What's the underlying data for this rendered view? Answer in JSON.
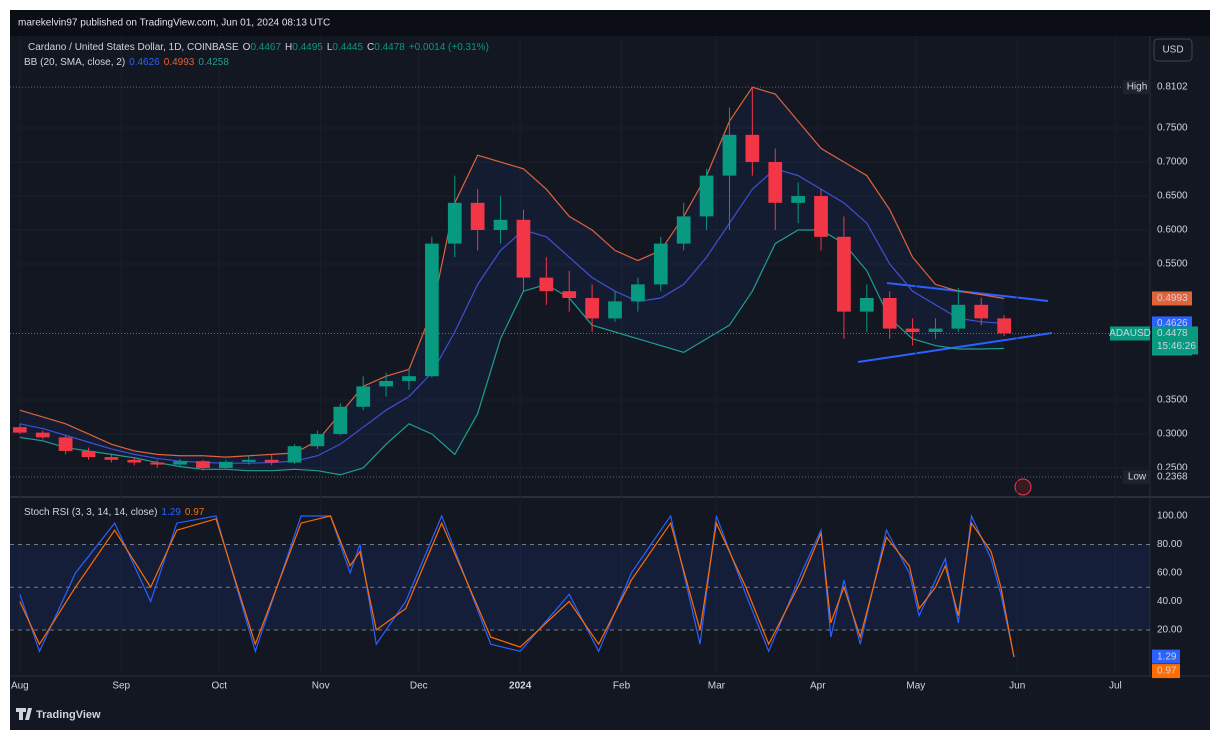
{
  "header": "marekelvin97 published on TradingView.com, Jun 01, 2024 08:13 UTC",
  "footer": "TradingView",
  "currency": "USD",
  "chart_data": [
    {
      "type": "candlestick",
      "title": "Cardano / United States Dollar, 1D, COINBASE",
      "ohlc_legend": [
        {
          "label": "O",
          "value": 0.4467
        },
        {
          "label": "H",
          "value": 0.4495
        },
        {
          "label": "L",
          "value": 0.4445
        },
        {
          "label": "C",
          "value": 0.4478
        }
      ],
      "change": "+0.0014 (+0.31%)",
      "symbol": "ADAUSD",
      "countdown": "15:46:26",
      "high_marker": {
        "label": "High",
        "value": 0.8102
      },
      "low_marker": {
        "label": "Low",
        "value": 0.2368
      },
      "up_color": "#089981",
      "down_color": "#f23645",
      "x": [
        0,
        7,
        14,
        21,
        28,
        35,
        42,
        49,
        56,
        63,
        70,
        77,
        84,
        91,
        98,
        105,
        112,
        119,
        126,
        133,
        140,
        147,
        154,
        161,
        168,
        175,
        182,
        189,
        196,
        203,
        210,
        217,
        224,
        231,
        238,
        245,
        252,
        259,
        266,
        273,
        280,
        287,
        294,
        301
      ],
      "open": [
        0.31,
        0.302,
        0.295,
        0.275,
        0.266,
        0.262,
        0.258,
        0.255,
        0.26,
        0.25,
        0.259,
        0.262,
        0.258,
        0.282,
        0.3,
        0.34,
        0.37,
        0.378,
        0.385,
        0.58,
        0.64,
        0.6,
        0.615,
        0.53,
        0.51,
        0.5,
        0.47,
        0.495,
        0.52,
        0.58,
        0.62,
        0.68,
        0.74,
        0.7,
        0.64,
        0.65,
        0.59,
        0.48,
        0.5,
        0.455,
        0.45,
        0.455,
        0.49,
        0.47
      ],
      "high": [
        0.315,
        0.305,
        0.298,
        0.28,
        0.27,
        0.266,
        0.262,
        0.263,
        0.262,
        0.262,
        0.268,
        0.27,
        0.285,
        0.305,
        0.345,
        0.385,
        0.39,
        0.395,
        0.59,
        0.68,
        0.66,
        0.65,
        0.63,
        0.56,
        0.54,
        0.52,
        0.51,
        0.53,
        0.59,
        0.64,
        0.69,
        0.78,
        0.81,
        0.72,
        0.67,
        0.66,
        0.62,
        0.52,
        0.51,
        0.47,
        0.47,
        0.515,
        0.5,
        0.475
      ],
      "low": [
        0.3,
        0.292,
        0.27,
        0.262,
        0.258,
        0.254,
        0.25,
        0.252,
        0.246,
        0.248,
        0.255,
        0.254,
        0.256,
        0.278,
        0.298,
        0.335,
        0.355,
        0.365,
        0.383,
        0.56,
        0.57,
        0.58,
        0.51,
        0.49,
        0.48,
        0.45,
        0.465,
        0.48,
        0.51,
        0.57,
        0.6,
        0.6,
        0.68,
        0.6,
        0.61,
        0.57,
        0.44,
        0.45,
        0.44,
        0.43,
        0.44,
        0.45,
        0.46,
        0.444
      ],
      "close": [
        0.302,
        0.295,
        0.275,
        0.266,
        0.262,
        0.258,
        0.255,
        0.26,
        0.25,
        0.259,
        0.262,
        0.258,
        0.282,
        0.3,
        0.34,
        0.37,
        0.378,
        0.385,
        0.58,
        0.64,
        0.6,
        0.615,
        0.53,
        0.51,
        0.5,
        0.47,
        0.495,
        0.52,
        0.58,
        0.62,
        0.68,
        0.74,
        0.7,
        0.64,
        0.65,
        0.59,
        0.48,
        0.5,
        0.455,
        0.45,
        0.455,
        0.49,
        0.47,
        0.448
      ],
      "bollinger": {
        "name": "BB (20, SMA, close, 2)",
        "basis": [
          0.315,
          0.308,
          0.298,
          0.288,
          0.278,
          0.27,
          0.264,
          0.26,
          0.258,
          0.257,
          0.257,
          0.258,
          0.26,
          0.268,
          0.285,
          0.31,
          0.335,
          0.355,
          0.39,
          0.45,
          0.52,
          0.57,
          0.6,
          0.59,
          0.56,
          0.53,
          0.51,
          0.495,
          0.5,
          0.52,
          0.56,
          0.61,
          0.66,
          0.69,
          0.68,
          0.66,
          0.64,
          0.61,
          0.55,
          0.51,
          0.49,
          0.47,
          0.465,
          0.4626
        ],
        "upper": [
          0.335,
          0.325,
          0.315,
          0.3,
          0.285,
          0.275,
          0.27,
          0.268,
          0.268,
          0.266,
          0.268,
          0.27,
          0.272,
          0.29,
          0.33,
          0.37,
          0.385,
          0.395,
          0.48,
          0.64,
          0.71,
          0.7,
          0.69,
          0.66,
          0.62,
          0.6,
          0.57,
          0.555,
          0.57,
          0.62,
          0.68,
          0.76,
          0.81,
          0.8,
          0.76,
          0.72,
          0.7,
          0.68,
          0.63,
          0.56,
          0.52,
          0.51,
          0.505,
          0.4993
        ],
        "lower": [
          0.295,
          0.29,
          0.28,
          0.275,
          0.27,
          0.265,
          0.258,
          0.252,
          0.248,
          0.248,
          0.246,
          0.246,
          0.248,
          0.246,
          0.24,
          0.25,
          0.285,
          0.315,
          0.3,
          0.27,
          0.33,
          0.44,
          0.51,
          0.52,
          0.5,
          0.46,
          0.45,
          0.44,
          0.43,
          0.42,
          0.44,
          0.46,
          0.51,
          0.58,
          0.6,
          0.6,
          0.58,
          0.54,
          0.47,
          0.44,
          0.43,
          0.425,
          0.425,
          0.4258
        ],
        "basis_color": "#3f51d6",
        "upper_color": "#e0633a",
        "lower_color": "#1f9e8c",
        "fill_color": "rgba(41,98,255,0.07)"
      },
      "xlim": [
        -2.4,
        345.6
      ],
      "ylim": [
        0.2176,
        0.8824
      ],
      "yticks": [
        {
          "value": 0.25,
          "label": "0.2500"
        },
        {
          "value": 0.3,
          "label": "0.3000"
        },
        {
          "value": 0.35,
          "label": "0.3500"
        },
        {
          "value": 0.55,
          "label": "0.5500"
        },
        {
          "value": 0.6,
          "label": "0.6000"
        },
        {
          "value": 0.65,
          "label": "0.6500"
        },
        {
          "value": 0.7,
          "label": "0.7000"
        },
        {
          "value": 0.75,
          "label": "0.7500"
        }
      ],
      "xticks": [
        {
          "value": 0,
          "label": "Aug"
        },
        {
          "value": 31,
          "label": "Sep"
        },
        {
          "value": 61,
          "label": "Oct"
        },
        {
          "value": 92,
          "label": "Nov"
        },
        {
          "value": 122,
          "label": "Dec"
        },
        {
          "value": 153,
          "label": "2024"
        },
        {
          "value": 184,
          "label": "Feb"
        },
        {
          "value": 213,
          "label": "Mar"
        },
        {
          "value": 244,
          "label": "Apr"
        },
        {
          "value": 274,
          "label": "May"
        },
        {
          "value": 305,
          "label": "Jun"
        },
        {
          "value": 335,
          "label": "Jul"
        }
      ],
      "grid": true
    },
    {
      "type": "line",
      "title": "Stoch RSI (3, 3, 14, 14, close)",
      "x": [
        0,
        6,
        17,
        29,
        40,
        48,
        60,
        72,
        86,
        95,
        101,
        104,
        109,
        118,
        129,
        144,
        153,
        168,
        177,
        187,
        199,
        208,
        213,
        222,
        229,
        239,
        245,
        248,
        252,
        257,
        265,
        272,
        275,
        280,
        283,
        287,
        291,
        297,
        300,
        304
      ],
      "series": [
        {
          "color": "#2962ff",
          "values": [
            45,
            5,
            60,
            95,
            40,
            95,
            100,
            5,
            100,
            100,
            60,
            80,
            10,
            40,
            100,
            10,
            5,
            45,
            5,
            60,
            100,
            10,
            100,
            45,
            5,
            60,
            90,
            15,
            55,
            10,
            90,
            60,
            30,
            55,
            70,
            25,
            100,
            70,
            45,
            1.29
          ]
        },
        {
          "color": "#ff6d00",
          "values": [
            40,
            10,
            50,
            90,
            50,
            90,
            98,
            10,
            95,
            100,
            65,
            75,
            20,
            35,
            95,
            15,
            8,
            40,
            10,
            55,
            95,
            20,
            95,
            50,
            10,
            55,
            88,
            25,
            50,
            15,
            85,
            65,
            35,
            50,
            65,
            30,
            95,
            75,
            50,
            0.97
          ]
        }
      ],
      "bands": [
        20,
        50,
        80
      ],
      "band_fill": "rgba(41,98,255,0.10)",
      "xlim": [
        -2.4,
        345.6
      ],
      "ylim": [
        -8.1,
        107.7
      ],
      "yticks": [
        {
          "value": 20,
          "label": "20.00"
        },
        {
          "value": 40,
          "label": "40.00"
        },
        {
          "value": 60,
          "label": "60.00"
        },
        {
          "value": 80,
          "label": "80.00"
        },
        {
          "value": 100,
          "label": "100.00"
        }
      ]
    }
  ]
}
